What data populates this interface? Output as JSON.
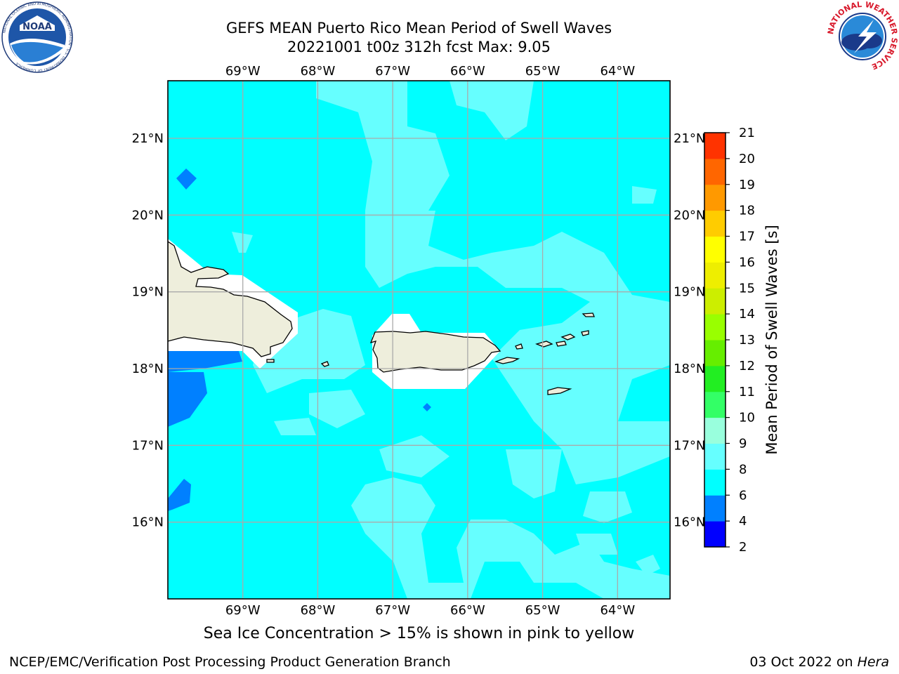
{
  "header": {
    "title_line1": "GEFS MEAN Puerto Rico Mean Period of Swell Waves",
    "title_line2": "20221001 t00z 312h fcst   Max: 9.05"
  },
  "logos": {
    "left": {
      "name": "noaa-logo",
      "text": "NOAA",
      "ring_text": "NATIONAL OCEANIC AND ATMOSPHERIC ADMINISTRATION · U.S. DEPARTMENT OF COMMERCE"
    },
    "right": {
      "name": "nws-logo",
      "ring_text": "NATIONAL WEATHER SERVICE"
    }
  },
  "map": {
    "lon_range": [
      -70,
      -63.3
    ],
    "lat_range": [
      15.0,
      21.75
    ],
    "lon_ticks": [
      {
        "value": -69,
        "label": "69°W"
      },
      {
        "value": -68,
        "label": "68°W"
      },
      {
        "value": -67,
        "label": "67°W"
      },
      {
        "value": -66,
        "label": "66°W"
      },
      {
        "value": -65,
        "label": "65°W"
      },
      {
        "value": -64,
        "label": "64°W"
      }
    ],
    "lat_ticks": [
      {
        "value": 21,
        "label": "21°N"
      },
      {
        "value": 20,
        "label": "20°N"
      },
      {
        "value": 19,
        "label": "19°N"
      },
      {
        "value": 18,
        "label": "18°N"
      },
      {
        "value": 17,
        "label": "17°N"
      },
      {
        "value": 16,
        "label": "16°N"
      }
    ],
    "grid": true,
    "colors": {
      "ocean_6_8": "#00ffff",
      "ocean_8_9": "#66ffff",
      "ocean_4_6": "#0080ff",
      "land": "#eeeedc",
      "no_data": "#ffffff",
      "grid": "#aaaaaa"
    }
  },
  "colorbar": {
    "label": "Mean Period of Swell Waves [s]",
    "ticks": [
      "2",
      "4",
      "6",
      "8",
      "9",
      "10",
      "11",
      "12",
      "13",
      "14",
      "15",
      "16",
      "17",
      "18",
      "19",
      "20",
      "21"
    ],
    "colors": [
      "#0000ff",
      "#0080ff",
      "#00ffff",
      "#66ffff",
      "#99ffdd",
      "#33ff66",
      "#22ee22",
      "#66ee00",
      "#99ff00",
      "#ccee00",
      "#eeee00",
      "#ffff00",
      "#ffcc00",
      "#ff9900",
      "#ff6600",
      "#ff3300"
    ]
  },
  "footer": {
    "note": "Sea Ice Concentration > 15% is shown in pink to yellow",
    "credit": "NCEP/EMC/Verification Post Processing Product Generation Branch",
    "date": "03 Oct 2022 on ",
    "host": "Hera"
  }
}
